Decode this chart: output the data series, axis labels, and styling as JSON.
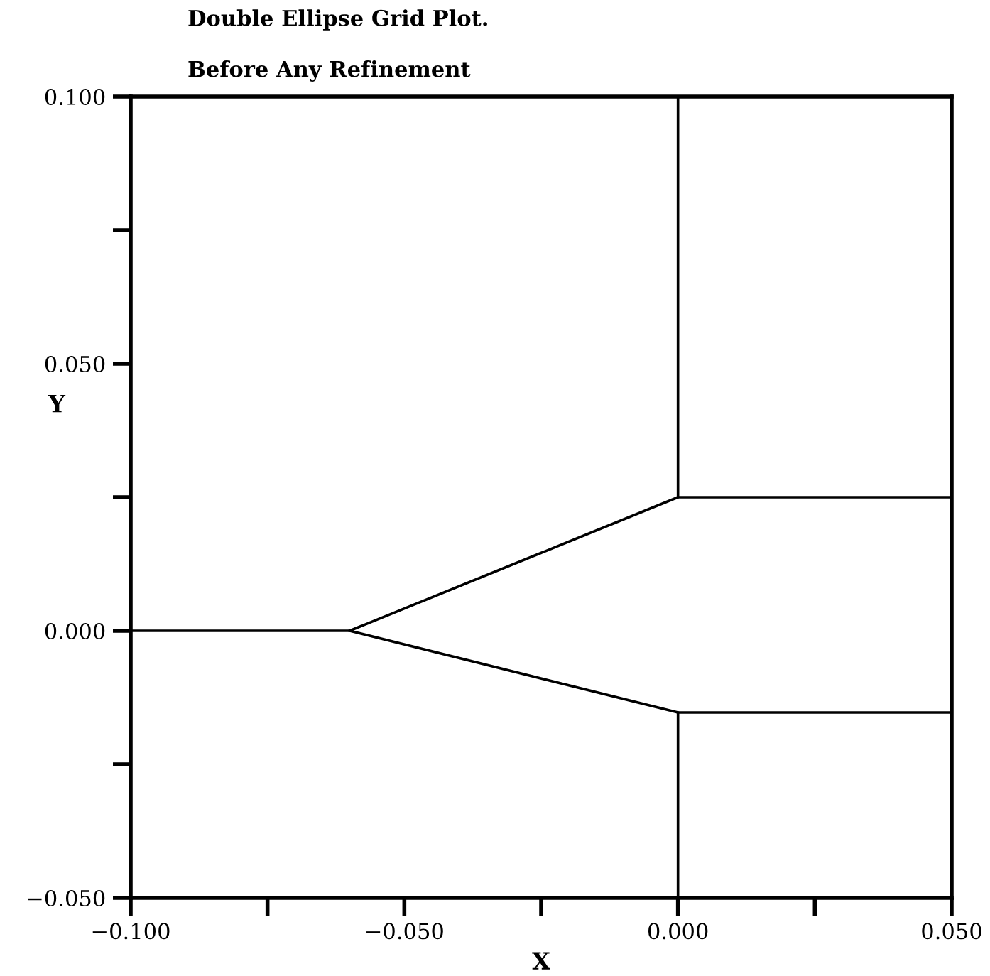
{
  "chart_data": {
    "type": "line",
    "title": "Double Ellipse Grid Plot.",
    "subtitle": "Before Any Refinement",
    "xlabel": "X",
    "ylabel": "Y",
    "series": [
      {
        "color": "#000000",
        "x": [
          -0.1,
          -0.06,
          0.0,
          0.0
        ],
        "values": [
          0.0,
          0.0,
          0.025,
          0.1
        ]
      },
      {
        "color": "#000000",
        "x": [
          -0.06,
          0.0,
          0.0
        ],
        "values": [
          0.0,
          -0.0153,
          -0.05
        ]
      },
      {
        "color": "#000000",
        "x": [
          0.0,
          0.05
        ],
        "values": [
          0.025,
          0.025
        ]
      },
      {
        "color": "#000000",
        "x": [
          0.0,
          0.05
        ],
        "values": [
          -0.0153,
          -0.0153
        ]
      }
    ],
    "xlim": [
      -0.1,
      0.05
    ],
    "ylim": [
      -0.05,
      0.1
    ],
    "xticks": [
      {
        "value": -0.1,
        "label": "−0.100"
      },
      {
        "value": -0.075,
        "label": null
      },
      {
        "value": -0.05,
        "label": "−0.050"
      },
      {
        "value": -0.025,
        "label": null
      },
      {
        "value": 0.0,
        "label": "0.000"
      },
      {
        "value": 0.025,
        "label": null
      },
      {
        "value": 0.05,
        "label": "0.050"
      }
    ],
    "yticks": [
      {
        "value": -0.05,
        "label": "−0.050"
      },
      {
        "value": -0.025,
        "label": null
      },
      {
        "value": 0.0,
        "label": "0.000"
      },
      {
        "value": 0.025,
        "label": null
      },
      {
        "value": 0.05,
        "label": "0.050"
      },
      {
        "value": 0.075,
        "label": null
      },
      {
        "value": 0.1,
        "label": "0.100"
      }
    ],
    "grid": false,
    "legend": false,
    "marker": "none",
    "line_style": "solid"
  }
}
